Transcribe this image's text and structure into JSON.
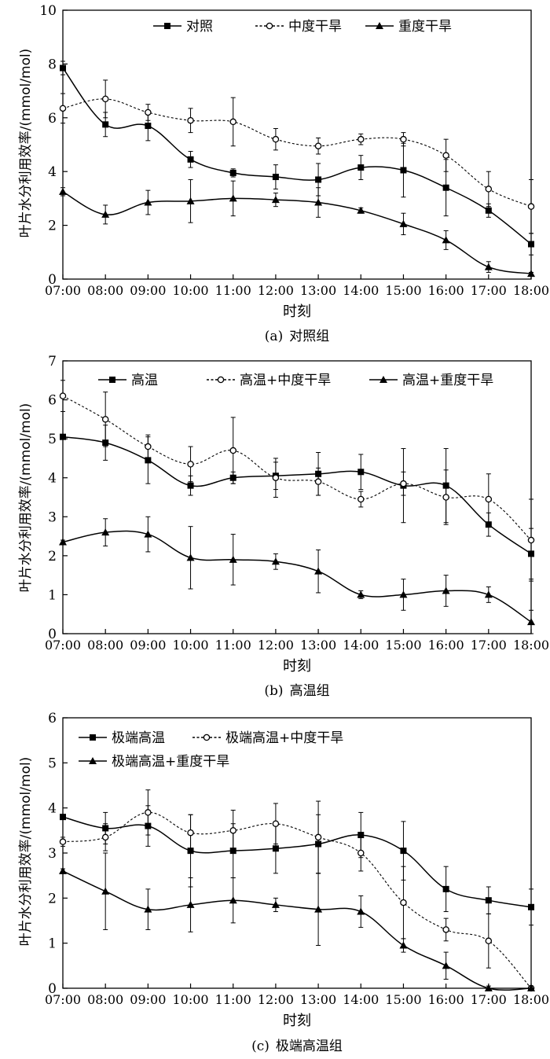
{
  "chart_data": [
    {
      "type": "line",
      "caption_label": "(a)",
      "caption_text": "对照组",
      "xlabel": "时刻",
      "ylabel": "叶片水分利用效率/(mmol/mol)",
      "categories": [
        "07:00",
        "08:00",
        "09:00",
        "10:00",
        "11:00",
        "12:00",
        "13:00",
        "14:00",
        "15:00",
        "16:00",
        "17:00",
        "18:00"
      ],
      "ylim": [
        0,
        10
      ],
      "yticks": [
        0,
        2,
        4,
        6,
        8,
        10
      ],
      "legend_position": "top",
      "series": [
        {
          "name": "对照",
          "marker": "square",
          "dash": "solid",
          "values": [
            7.85,
            5.75,
            5.7,
            4.45,
            3.95,
            3.8,
            3.7,
            4.15,
            4.05,
            3.4,
            2.55,
            1.3
          ],
          "errors": [
            0.25,
            0.45,
            0.55,
            0.3,
            0.15,
            0.45,
            0.6,
            0.45,
            1.0,
            1.05,
            0.25,
            0.4
          ]
        },
        {
          "name": "中度干旱",
          "marker": "circle",
          "dash": "dashed",
          "values": [
            6.35,
            6.7,
            6.2,
            5.9,
            5.85,
            5.2,
            4.95,
            5.2,
            5.2,
            4.6,
            3.35,
            2.7
          ],
          "errors": [
            0.55,
            0.7,
            0.3,
            0.45,
            0.9,
            0.4,
            0.3,
            0.2,
            0.25,
            0.6,
            0.65,
            1.0
          ]
        },
        {
          "name": "重度干旱",
          "marker": "triangle",
          "dash": "solid",
          "values": [
            3.25,
            2.4,
            2.85,
            2.9,
            3.0,
            2.95,
            2.85,
            2.55,
            2.05,
            1.45,
            0.45,
            0.2
          ],
          "errors": [
            0.15,
            0.35,
            0.45,
            0.8,
            0.65,
            0.25,
            0.55,
            0.1,
            0.4,
            0.35,
            0.2,
            0.05
          ]
        }
      ]
    },
    {
      "type": "line",
      "caption_label": "(b)",
      "caption_text": "高温组",
      "xlabel": "时刻",
      "ylabel": "叶片水分利用效率/(mmol/mol)",
      "categories": [
        "07:00",
        "08:00",
        "09:00",
        "10:00",
        "11:00",
        "12:00",
        "13:00",
        "14:00",
        "15:00",
        "16:00",
        "17:00",
        "18:00"
      ],
      "ylim": [
        0,
        7
      ],
      "yticks": [
        0,
        1,
        2,
        3,
        4,
        5,
        6,
        7
      ],
      "legend_position": "top",
      "series": [
        {
          "name": "高温",
          "marker": "square",
          "dash": "solid",
          "values": [
            5.05,
            4.9,
            4.45,
            3.8,
            4.0,
            4.05,
            4.1,
            4.15,
            3.8,
            3.8,
            2.8,
            2.05
          ],
          "errors": [
            0.05,
            0.45,
            0.6,
            0.25,
            0.15,
            0.35,
            0.55,
            0.45,
            0.95,
            0.95,
            0.3,
            0.65
          ]
        },
        {
          "name": "高温+中度干旱",
          "marker": "circle",
          "dash": "dashed",
          "values": [
            6.1,
            5.5,
            4.8,
            4.35,
            4.7,
            4.0,
            3.9,
            3.45,
            3.85,
            3.5,
            3.45,
            2.4
          ],
          "errors": [
            0.4,
            0.7,
            0.3,
            0.45,
            0.85,
            0.5,
            0.35,
            0.2,
            0.3,
            0.7,
            0.65,
            1.05
          ]
        },
        {
          "name": "高温+重度干旱",
          "marker": "triangle",
          "dash": "solid",
          "values": [
            2.35,
            2.6,
            2.55,
            1.95,
            1.9,
            1.85,
            1.6,
            1.0,
            1.0,
            1.1,
            1.0,
            0.3
          ],
          "errors": [
            0.05,
            0.35,
            0.45,
            0.8,
            0.65,
            0.2,
            0.55,
            0.1,
            0.4,
            0.4,
            0.2,
            0.3
          ]
        }
      ]
    },
    {
      "type": "line",
      "caption_label": "(c)",
      "caption_text": "极端高温组",
      "xlabel": "时刻",
      "ylabel": "叶片水分利用效率/(mmol/mol)",
      "categories": [
        "07:00",
        "08:00",
        "09:00",
        "10:00",
        "11:00",
        "12:00",
        "13:00",
        "14:00",
        "15:00",
        "16:00",
        "17:00",
        "18:00"
      ],
      "ylim": [
        0,
        6
      ],
      "yticks": [
        0,
        1,
        2,
        3,
        4,
        5,
        6
      ],
      "legend_position": "top-left",
      "series": [
        {
          "name": "极端高温",
          "marker": "square",
          "dash": "solid",
          "values": [
            3.8,
            3.55,
            3.6,
            3.05,
            3.05,
            3.1,
            3.2,
            3.4,
            3.05,
            2.2,
            1.95,
            1.8
          ],
          "errors": [
            0.05,
            0.35,
            0.45,
            0.8,
            0.6,
            0.55,
            0.65,
            0.5,
            0.65,
            0.5,
            0.3,
            0.4
          ]
        },
        {
          "name": "极端高温+中度干旱",
          "marker": "circle",
          "dash": "dashed",
          "values": [
            3.25,
            3.35,
            3.9,
            3.45,
            3.5,
            3.65,
            3.35,
            3.0,
            1.9,
            1.3,
            1.05,
            0.0
          ],
          "errors": [
            0.1,
            0.3,
            0.5,
            0.4,
            0.45,
            0.45,
            0.8,
            0.4,
            0.8,
            0.25,
            0.6,
            0.05
          ]
        },
        {
          "name": "极端高温+重度干旱",
          "marker": "triangle",
          "dash": "solid",
          "values": [
            2.6,
            2.15,
            1.75,
            1.85,
            1.95,
            1.85,
            1.75,
            1.7,
            0.95,
            0.5,
            0.0,
            0.0
          ],
          "errors": [
            0.05,
            0.85,
            0.45,
            0.6,
            0.5,
            0.15,
            0.8,
            0.35,
            0.15,
            0.3,
            0.05,
            0.05
          ]
        }
      ]
    }
  ]
}
